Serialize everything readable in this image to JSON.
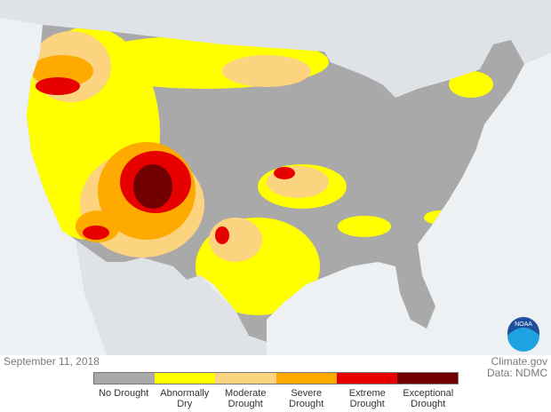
{
  "date": "September 11, 2018",
  "source": "Climate.gov",
  "credit": "Data: NDMC",
  "legend": [
    {
      "label": "No Drought",
      "color": "#a9a9a9"
    },
    {
      "label": "Abnormally Dry",
      "color": "#ffff00"
    },
    {
      "label": "Moderate Drought",
      "color": "#fcd37f"
    },
    {
      "label": "Severe Drought",
      "color": "#ffaa00"
    },
    {
      "label": "Extreme Drought",
      "color": "#e60000"
    },
    {
      "label": "Exceptional Drought",
      "color": "#730000"
    }
  ]
}
